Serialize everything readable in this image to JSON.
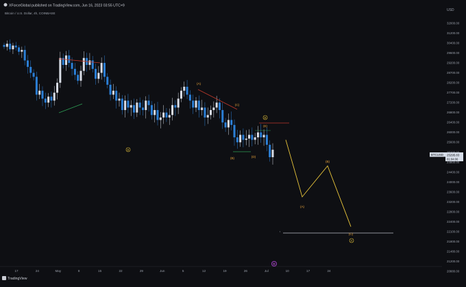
{
  "header": {
    "published_line": "XForceGlobal published on TradingView.com, Jun 16, 2023 03:55 UTC+9",
    "symbol_line": "Bitcoin / U.S. Dollar, 4h, COINBASE"
  },
  "footer": {
    "brand": "TradingView"
  },
  "colors": {
    "background": "#0e0f13",
    "candle_up": "#d9dde6",
    "candle_down": "#2b7fd6",
    "projection": "#e8c43a",
    "wave_label": "#e8a33a",
    "trendline_red": "#c0392b",
    "trendline_green": "#2e9e55",
    "target_line": "#b8bcc7",
    "price_badge": "#d6dde8",
    "pink_marker": "#a341c9"
  },
  "chart_data": {
    "type": "candlestick",
    "ylabel": "USD",
    "y_ticks": [
      "32000.00",
      "31200.00",
      "30400.00",
      "29600.00",
      "29200.00",
      "28700.00",
      "28200.00",
      "27700.00",
      "27200.00",
      "26800.00",
      "26400.00",
      "26000.00",
      "25600.00",
      "25200.00",
      "24800.00",
      "24400.00",
      "24000.00",
      "23600.00",
      "23200.00",
      "22800.00",
      "22400.00",
      "22100.00",
      "21800.00",
      "21480.00",
      "21200.00",
      "20880.00"
    ],
    "x_ticks": [
      "17",
      "24",
      "May",
      "8",
      "15",
      "22",
      "29",
      "Jun",
      "5",
      "12",
      "19",
      "26",
      "Jul",
      "10",
      "17",
      "24"
    ],
    "current_price": {
      "symbol": "BTCUSD",
      "price": "25295.83",
      "countdown": "01:04:06"
    },
    "candles_close": [
      30100,
      30350,
      29900,
      30200,
      30050,
      29700,
      29850,
      29300,
      29000,
      28700,
      28500,
      27600,
      27800,
      27400,
      27200,
      27500,
      27300,
      27700,
      28200,
      29400,
      29100,
      29500,
      29200,
      28900,
      28600,
      28300,
      28800,
      29400,
      29100,
      29300,
      28900,
      28400,
      28700,
      29200,
      28500,
      28100,
      27600,
      27800,
      27300,
      27400,
      26900,
      27300,
      27000,
      27100,
      26800,
      27200,
      27000,
      26900,
      27300,
      27100,
      26700,
      26900,
      26500,
      26600,
      26800,
      26600,
      26700,
      27100,
      27000,
      27400,
      27800,
      28000,
      27600,
      27300,
      27000,
      27300,
      26900,
      27000,
      26600,
      26700,
      26900,
      27000,
      27200,
      26900,
      26400,
      26200,
      26500,
      26300,
      25800,
      25600,
      25900,
      25700,
      25750,
      25900,
      25700,
      25800,
      26000,
      25800,
      25900,
      25500,
      25000,
      25300
    ],
    "projection_path": [
      {
        "label": "(A)",
        "price": 23400
      },
      {
        "label": "(B)",
        "price": 24650
      },
      {
        "label": "(C)",
        "price": 22250
      }
    ],
    "target_level": 22050,
    "wave_labels": [
      "(A)",
      "(B)",
      "(C)",
      "(D)",
      "(E)",
      "(A)",
      "(B)",
      "(C)"
    ],
    "circle_labels": [
      "B",
      "B",
      "X",
      "D"
    ]
  }
}
